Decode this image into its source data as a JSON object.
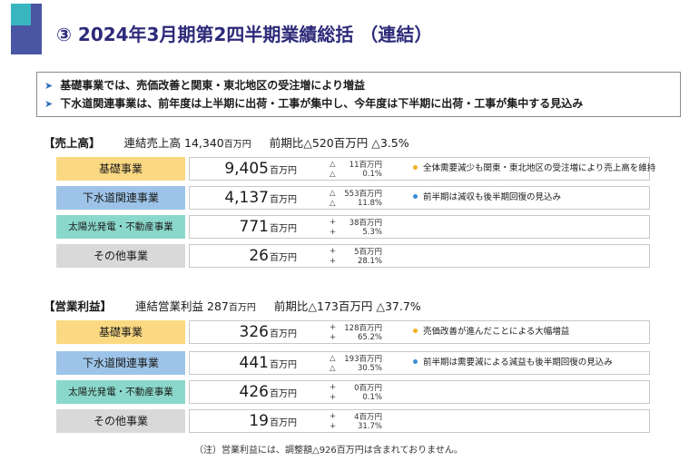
{
  "title": "③ 2024年3月期第2四半期業績総括 （連結）",
  "summary": [
    "基礎事業では、売価改善と関東・東北地区の受注増により増益",
    "下水道関連事業は、前年度は上半期に出荷・工事が集中し、今年度は下半期に出荷・工事が集中する見込み"
  ],
  "sales": {
    "heading": "【売上高】",
    "consolidated_label": "連結売上高",
    "consolidated_value": "14,340",
    "consolidated_unit": "百万円",
    "yoy_label": "前期比△520百万円",
    "yoy_pct": "△3.5%",
    "rows": [
      {
        "segment": "基礎事業",
        "value": "9,405",
        "unit": "百万円",
        "sign": "△",
        "diff": "11百万円",
        "pct": "0.1%",
        "note": "全体需要減少も関東・東北地区の受注増により売上高を維持"
      },
      {
        "segment": "下水道関連事業",
        "value": "4,137",
        "unit": "百万円",
        "sign": "△",
        "diff": "553百万円",
        "pct": "11.8%",
        "note": "前半期は減収も後半期回復の見込み"
      },
      {
        "segment": "太陽光発電・不動産事業",
        "value": "771",
        "unit": "百万円",
        "sign": "+",
        "diff": "38百万円",
        "pct": "5.3%",
        "note": ""
      },
      {
        "segment": "その他事業",
        "value": "26",
        "unit": "百万円",
        "sign": "+",
        "diff": "5百万円",
        "pct": "28.1%",
        "note": ""
      }
    ]
  },
  "profit": {
    "heading": "【営業利益】",
    "consolidated_label": "連結営業利益",
    "consolidated_value": "287",
    "consolidated_unit": "百万円",
    "yoy_label": "前期比△173百万円",
    "yoy_pct": "△37.7%",
    "rows": [
      {
        "segment": "基礎事業",
        "value": "326",
        "unit": "百万円",
        "sign": "+",
        "diff": "128百万円",
        "pct": "65.2%",
        "note": "売価改善が進んだことによる大幅増益"
      },
      {
        "segment": "下水道関連事業",
        "value": "441",
        "unit": "百万円",
        "sign": "△",
        "diff": "193百万円",
        "pct": "30.5%",
        "note": "前半期は需要減による減益も後半期回復の見込み"
      },
      {
        "segment": "太陽光発電・不動産事業",
        "value": "426",
        "unit": "百万円",
        "sign": "+",
        "diff": "0百万円",
        "pct": "0.1%",
        "note": ""
      },
      {
        "segment": "その他事業",
        "value": "19",
        "unit": "百万円",
        "sign": "+",
        "diff": "4百万円",
        "pct": "31.7%",
        "note": ""
      }
    ]
  },
  "footnote": "（注）営業利益には、調整額△926百万円は含まれておりません。",
  "colors": {
    "title": "#2d2a7a",
    "basic": "#fbd982",
    "sewer": "#9dc4e8",
    "solar": "#8ad8cb",
    "other": "#d9d9d9",
    "note_dot_yellow": "#f2b01e",
    "note_dot_blue": "#3c8bd4"
  }
}
